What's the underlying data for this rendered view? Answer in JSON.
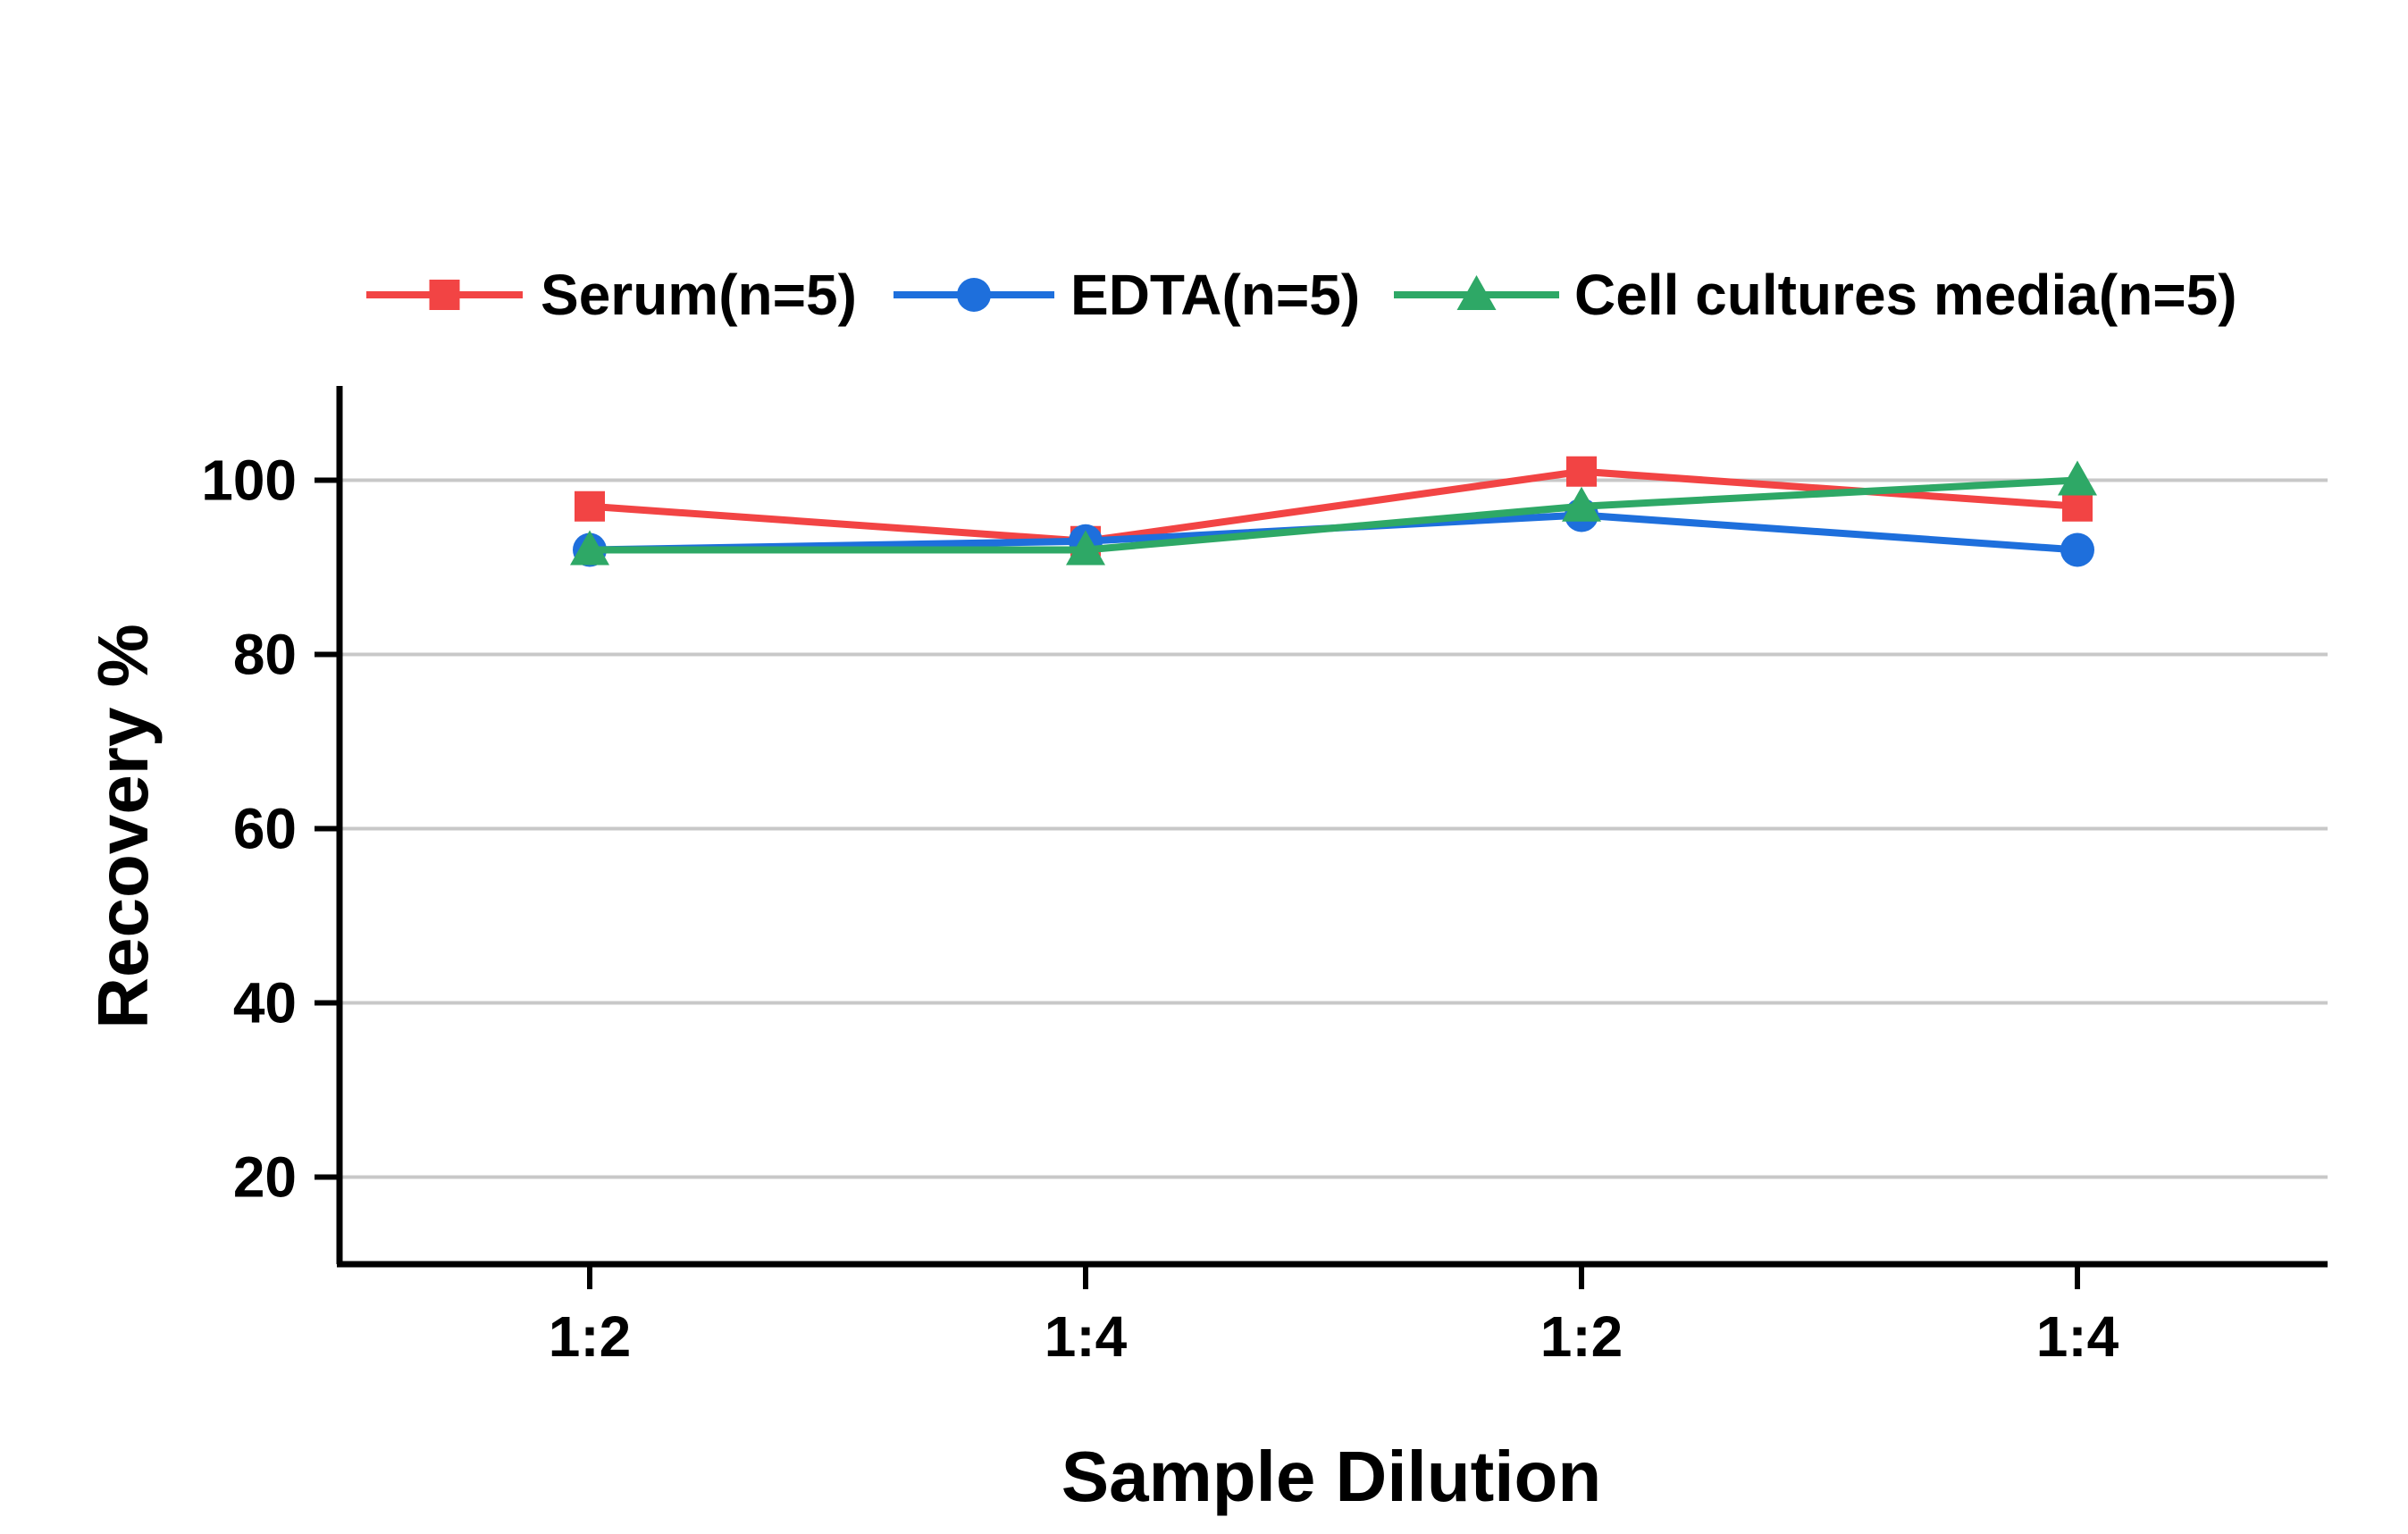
{
  "chart_data": {
    "type": "line",
    "categories": [
      "1:2",
      "1:4",
      "1:2",
      "1:4"
    ],
    "series": [
      {
        "name": "Serum(n=5)",
        "color": "#f24444",
        "marker": "square",
        "values": [
          97,
          93,
          101,
          97
        ]
      },
      {
        "name": "EDTA(n=5)",
        "color": "#1e6fdc",
        "marker": "circle",
        "values": [
          92,
          93,
          96,
          92
        ]
      },
      {
        "name": "Cell cultures media(n=5)",
        "color": "#2ea866",
        "marker": "triangle",
        "values": [
          92,
          92,
          97,
          100
        ]
      }
    ],
    "title": "",
    "xlabel": "Sample Dilution",
    "ylabel": "Recovery %",
    "ylim": [
      10,
      110
    ],
    "yticks": [
      20,
      40,
      60,
      80,
      100
    ],
    "grid": "horizontal",
    "legend_position": "top"
  }
}
